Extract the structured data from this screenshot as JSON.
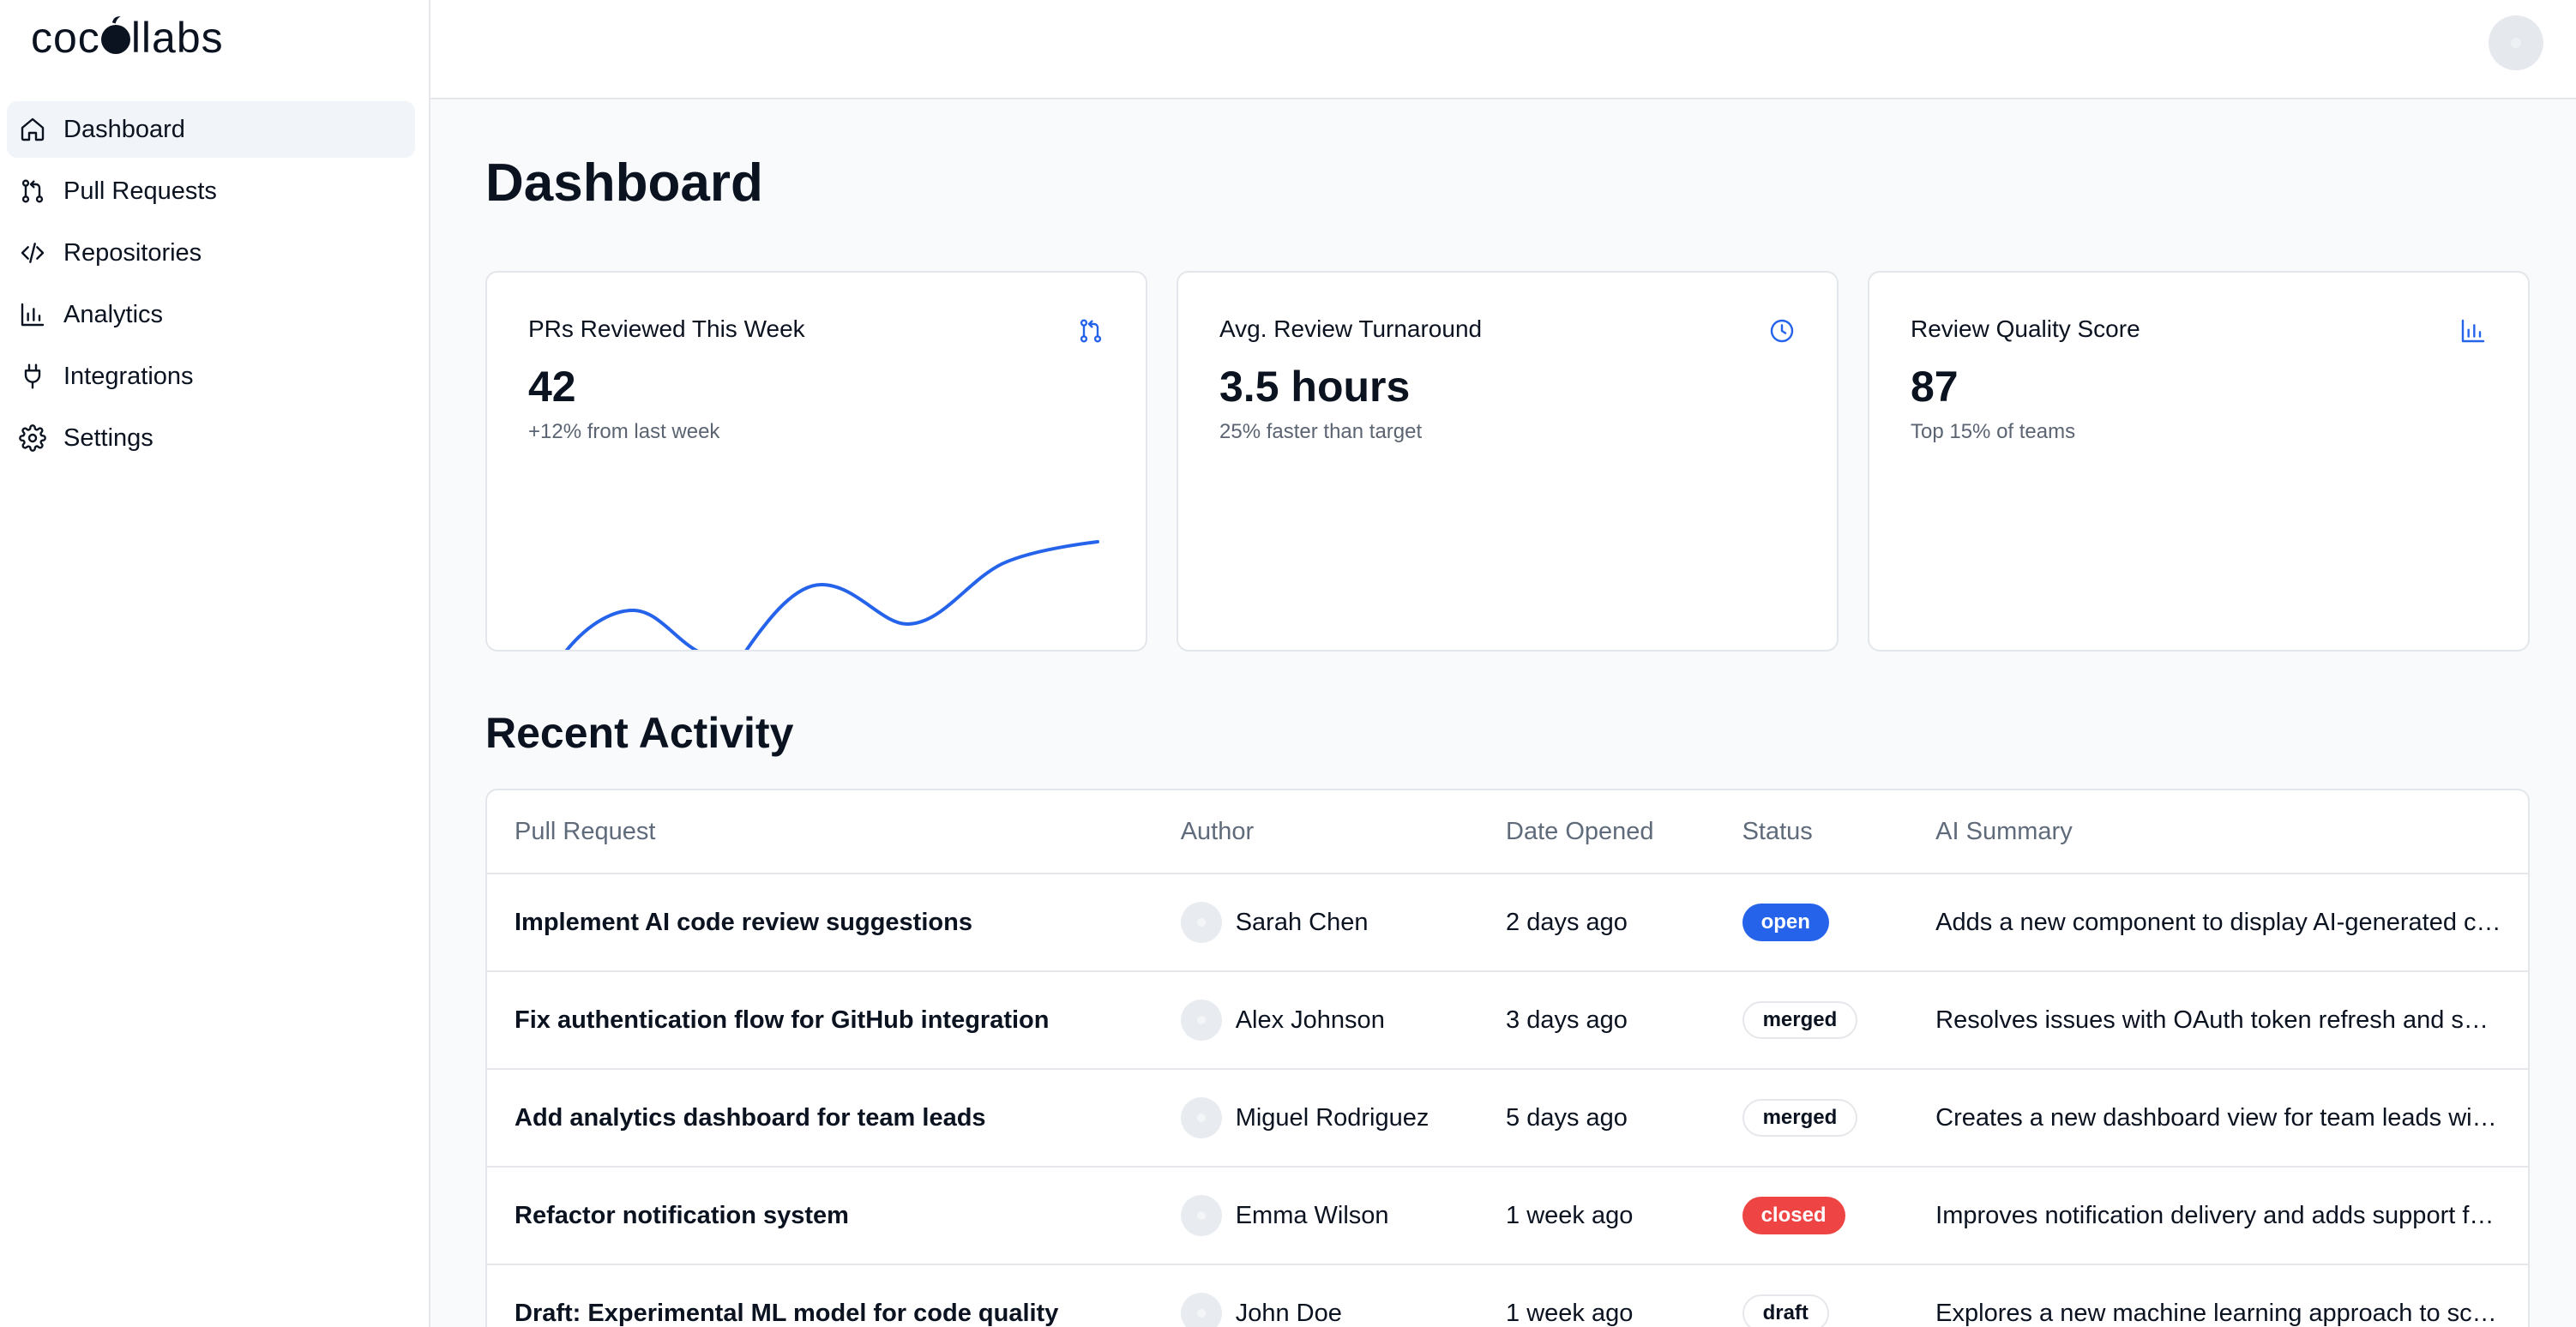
{
  "brand": {
    "logo_text_left": "coc",
    "logo_text_right": "llabs"
  },
  "sidebar": {
    "items": [
      {
        "label": "Dashboard",
        "icon": "home-icon",
        "active": true
      },
      {
        "label": "Pull Requests",
        "icon": "git-pull-request-icon",
        "active": false
      },
      {
        "label": "Repositories",
        "icon": "code-icon",
        "active": false
      },
      {
        "label": "Analytics",
        "icon": "bar-chart-icon",
        "active": false
      },
      {
        "label": "Integrations",
        "icon": "plug-icon",
        "active": false
      },
      {
        "label": "Settings",
        "icon": "gear-icon",
        "active": false
      }
    ]
  },
  "header": {
    "title": "Dashboard"
  },
  "stats": [
    {
      "title": "PRs Reviewed This Week",
      "value": "42",
      "subtitle": "+12% from last week",
      "icon": "git-pull-request-icon"
    },
    {
      "title": "Avg. Review Turnaround",
      "value": "3.5 hours",
      "subtitle": "25% faster than target",
      "icon": "clock-icon"
    },
    {
      "title": "Review Quality Score",
      "value": "87",
      "subtitle": "Top 15% of teams",
      "icon": "bar-chart-icon"
    }
  ],
  "activity": {
    "title": "Recent Activity",
    "columns": [
      "Pull Request",
      "Author",
      "Date Opened",
      "Status",
      "AI Summary"
    ],
    "rows": [
      {
        "pr": "Implement AI code review suggestions",
        "author": "Sarah Chen",
        "date": "2 days ago",
        "status": "open",
        "summary": "Adds a new component to display AI-generated code review suggestions"
      },
      {
        "pr": "Fix authentication flow for GitHub integration",
        "author": "Alex Johnson",
        "date": "3 days ago",
        "status": "merged",
        "summary": "Resolves issues with OAuth token refresh and session handling"
      },
      {
        "pr": "Add analytics dashboard for team leads",
        "author": "Miguel Rodriguez",
        "date": "5 days ago",
        "status": "merged",
        "summary": "Creates a new dashboard view for team leads with review metrics"
      },
      {
        "pr": "Refactor notification system",
        "author": "Emma Wilson",
        "date": "1 week ago",
        "status": "closed",
        "summary": "Improves notification delivery and adds support for preferences"
      },
      {
        "pr": "Draft: Experimental ML model for code quality",
        "author": "John Doe",
        "date": "1 week ago",
        "status": "draft",
        "summary": "Explores a new machine learning approach to scoring code quality"
      }
    ]
  },
  "colors": {
    "accent": "#2563eb",
    "open": "#2563eb",
    "closed": "#ef4444",
    "sparkline": "#2563eb"
  }
}
